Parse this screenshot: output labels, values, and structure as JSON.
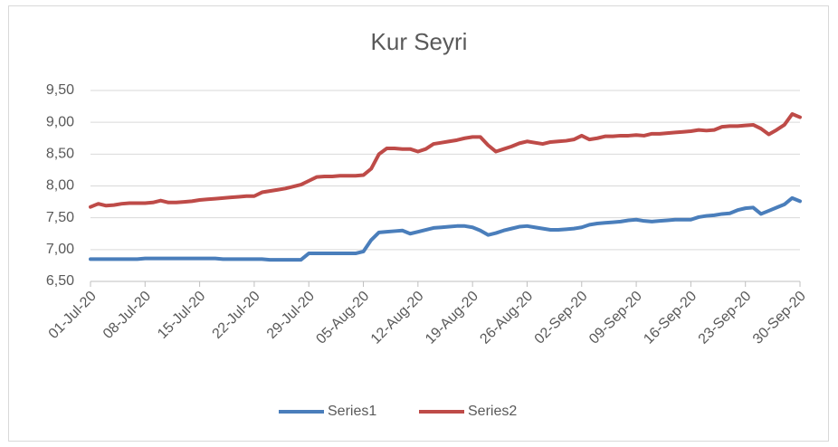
{
  "chart_data": {
    "type": "line",
    "title": "Kur Seyri",
    "categories": [
      "01-Jul-20",
      null,
      null,
      null,
      null,
      null,
      null,
      "08-Jul-20",
      null,
      null,
      null,
      null,
      null,
      null,
      "15-Jul-20",
      null,
      null,
      null,
      null,
      null,
      null,
      "22-Jul-20",
      null,
      null,
      null,
      null,
      null,
      null,
      "29-Jul-20",
      null,
      null,
      null,
      null,
      null,
      null,
      "05-Aug-20",
      null,
      null,
      null,
      null,
      null,
      null,
      "12-Aug-20",
      null,
      null,
      null,
      null,
      null,
      null,
      "19-Aug-20",
      null,
      null,
      null,
      null,
      null,
      null,
      "26-Aug-20",
      null,
      null,
      null,
      null,
      null,
      null,
      "02-Sep-20",
      null,
      null,
      null,
      null,
      null,
      null,
      "09-Sep-20",
      null,
      null,
      null,
      null,
      null,
      null,
      "16-Sep-20",
      null,
      null,
      null,
      null,
      null,
      null,
      "23-Sep-20",
      null,
      null,
      null,
      null,
      null,
      null,
      "30-Sep-20"
    ],
    "series": [
      {
        "name": "Series1",
        "color": "#4a7ebb",
        "values": [
          6.85,
          6.85,
          6.85,
          6.85,
          6.85,
          6.85,
          6.85,
          6.86,
          6.86,
          6.86,
          6.86,
          6.86,
          6.86,
          6.86,
          6.86,
          6.86,
          6.86,
          6.85,
          6.85,
          6.85,
          6.85,
          6.85,
          6.85,
          6.84,
          6.84,
          6.84,
          6.84,
          6.84,
          6.94,
          6.94,
          6.94,
          6.94,
          6.94,
          6.94,
          6.94,
          6.97,
          7.15,
          7.27,
          7.28,
          7.29,
          7.3,
          7.25,
          7.28,
          7.31,
          7.34,
          7.35,
          7.36,
          7.37,
          7.37,
          7.35,
          7.3,
          7.23,
          7.26,
          7.3,
          7.33,
          7.36,
          7.37,
          7.35,
          7.33,
          7.31,
          7.31,
          7.32,
          7.33,
          7.35,
          7.39,
          7.41,
          7.42,
          7.43,
          7.44,
          7.46,
          7.47,
          7.45,
          7.44,
          7.45,
          7.46,
          7.47,
          7.47,
          7.47,
          7.51,
          7.53,
          7.54,
          7.56,
          7.57,
          7.62,
          7.65,
          7.66,
          7.56,
          7.61,
          7.66,
          7.71,
          7.81,
          7.76
        ]
      },
      {
        "name": "Series2",
        "color": "#be4b48",
        "values": [
          7.67,
          7.72,
          7.69,
          7.7,
          7.72,
          7.73,
          7.73,
          7.73,
          7.74,
          7.77,
          7.74,
          7.74,
          7.75,
          7.76,
          7.78,
          7.79,
          7.8,
          7.81,
          7.82,
          7.83,
          7.84,
          7.84,
          7.9,
          7.92,
          7.94,
          7.96,
          7.99,
          8.02,
          8.08,
          8.14,
          8.15,
          8.15,
          8.16,
          8.16,
          8.16,
          8.17,
          8.27,
          8.5,
          8.59,
          8.59,
          8.58,
          8.58,
          8.54,
          8.58,
          8.66,
          8.68,
          8.7,
          8.72,
          8.75,
          8.77,
          8.77,
          8.64,
          8.54,
          8.58,
          8.62,
          8.67,
          8.7,
          8.68,
          8.66,
          8.69,
          8.7,
          8.71,
          8.73,
          8.79,
          8.73,
          8.75,
          8.78,
          8.78,
          8.79,
          8.79,
          8.8,
          8.79,
          8.82,
          8.82,
          8.83,
          8.84,
          8.85,
          8.86,
          8.88,
          8.87,
          8.88,
          8.93,
          8.94,
          8.94,
          8.95,
          8.96,
          8.9,
          8.81,
          8.88,
          8.96,
          9.13,
          9.08
        ]
      }
    ],
    "ylim": [
      6.5,
      9.5
    ],
    "yticks": [
      {
        "value": 6.5,
        "label": "6,50"
      },
      {
        "value": 7,
        "label": "7,00"
      },
      {
        "value": 7.5,
        "label": "7,50"
      },
      {
        "value": 8,
        "label": "8,00"
      },
      {
        "value": 8.5,
        "label": "8,50"
      },
      {
        "value": 9,
        "label": "9,00"
      },
      {
        "value": 9.5,
        "label": "9,50"
      }
    ],
    "grid": true,
    "legend": "bottom"
  }
}
